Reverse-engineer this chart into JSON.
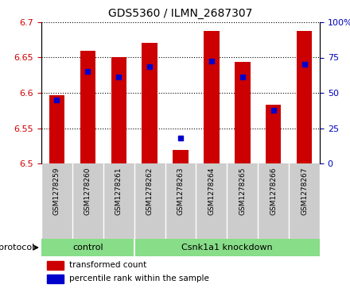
{
  "title": "GDS5360 / ILMN_2687307",
  "samples": [
    "GSM1278259",
    "GSM1278260",
    "GSM1278261",
    "GSM1278262",
    "GSM1278263",
    "GSM1278264",
    "GSM1278265",
    "GSM1278266",
    "GSM1278267"
  ],
  "red_values": [
    6.597,
    6.66,
    6.65,
    6.671,
    6.519,
    6.688,
    6.644,
    6.583,
    6.688
  ],
  "blue_values": [
    6.59,
    6.63,
    6.623,
    6.637,
    6.536,
    6.645,
    6.622,
    6.575,
    6.641
  ],
  "ylim_left": [
    6.5,
    6.7
  ],
  "ylim_right": [
    0,
    100
  ],
  "yticks_left": [
    6.5,
    6.55,
    6.6,
    6.65,
    6.7
  ],
  "yticks_right": [
    0,
    25,
    50,
    75,
    100
  ],
  "protocol_groups": [
    {
      "label": "control",
      "start": 0,
      "end": 2
    },
    {
      "label": "Csnk1a1 knockdown",
      "start": 3,
      "end": 8
    }
  ],
  "protocol_label": "protocol",
  "legend_items": [
    {
      "label": "transformed count",
      "color": "#cc0000"
    },
    {
      "label": "percentile rank within the sample",
      "color": "#0000cc"
    }
  ],
  "red_color": "#cc0000",
  "blue_color": "#0000cc",
  "bar_width": 0.5,
  "blue_marker_size": 5,
  "tick_label_color_left": "#cc0000",
  "tick_label_color_right": "#0000bb",
  "xlabel_area_color": "#cccccc",
  "protocol_bar_color": "#88dd88"
}
